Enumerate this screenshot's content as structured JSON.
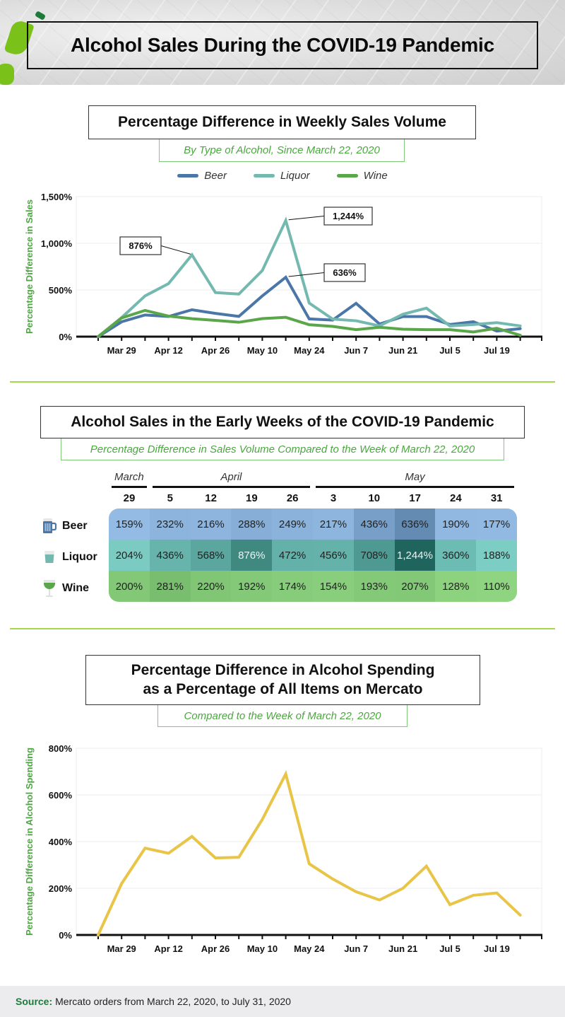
{
  "header": {
    "title": "Alcohol Sales During the COVID-19 Pandemic"
  },
  "section1": {
    "title": "Percentage Difference in Weekly Sales Volume",
    "subtitle": "By Type of Alcohol, Since March 22, 2020"
  },
  "section2": {
    "title": "Alcohol Sales in the Early Weeks of the COVID-19 Pandemic",
    "subtitle": "Percentage Difference in Sales Volume Compared to the Week of March 22, 2020"
  },
  "section3": {
    "title_line1": "Percentage Difference in Alcohol Spending",
    "title_line2": "as a Percentage of All Items on Mercato",
    "subtitle": "Compared to the Week of March 22, 2020"
  },
  "footer": {
    "source_label": "Source:",
    "source_text": "Mercato orders from March 22, 2020, to July 31, 2020"
  },
  "colors": {
    "beer": "#4a77a8",
    "liquor": "#74b9b0",
    "wine": "#5aa64a",
    "spending": "#e8c547",
    "accent_green": "#4aa83e",
    "divider": "#a6d94a"
  },
  "chart_data": [
    {
      "type": "line",
      "title": "Percentage Difference in Weekly Sales Volume",
      "subtitle": "By Type of Alcohol, Since March 22, 2020",
      "xlabel": "",
      "ylabel": "Percentage Difference in Sales",
      "ylim": [
        0,
        1500
      ],
      "yticks": [
        0,
        500,
        1000,
        1500
      ],
      "ytick_labels": [
        "0%",
        "500%",
        "1,000%",
        "1,500%"
      ],
      "x_tick_labels": [
        "Mar 29",
        "Apr 12",
        "Apr 26",
        "May 10",
        "May 24",
        "Jun 7",
        "Jun 21",
        "Jul 5",
        "Jul 19"
      ],
      "x": [
        "Mar 22",
        "Mar 29",
        "Apr 5",
        "Apr 12",
        "Apr 19",
        "Apr 26",
        "May 3",
        "May 10",
        "May 17",
        "May 24",
        "May 31",
        "Jun 7",
        "Jun 14",
        "Jun 21",
        "Jun 28",
        "Jul 5",
        "Jul 12",
        "Jul 19",
        "Jul 26"
      ],
      "grid": true,
      "legend": "top-center",
      "series": [
        {
          "name": "Beer",
          "color": "#4a77a8",
          "values": [
            0,
            159,
            232,
            216,
            288,
            249,
            217,
            436,
            636,
            190,
            177,
            357,
            135,
            215,
            215,
            130,
            160,
            60,
            85
          ]
        },
        {
          "name": "Liquor",
          "color": "#74b9b0",
          "values": [
            0,
            204,
            436,
            568,
            876,
            472,
            456,
            708,
            1244,
            360,
            188,
            170,
            115,
            240,
            305,
            115,
            130,
            150,
            115
          ]
        },
        {
          "name": "Wine",
          "color": "#5aa64a",
          "values": [
            0,
            200,
            281,
            220,
            192,
            174,
            154,
            193,
            207,
            128,
            110,
            75,
            100,
            80,
            75,
            75,
            50,
            90,
            15
          ]
        }
      ],
      "annotations": [
        {
          "text": "876%",
          "series": "Liquor",
          "x": "Apr 19"
        },
        {
          "text": "1,244%",
          "series": "Liquor",
          "x": "May 17"
        },
        {
          "text": "636%",
          "series": "Beer",
          "x": "May 17"
        }
      ]
    },
    {
      "type": "table",
      "title": "Alcohol Sales in the Early Weeks of the COVID-19 Pandemic",
      "subtitle": "Percentage Difference in Sales Volume Compared to the Week of March 22, 2020",
      "month_groups": [
        {
          "label": "March",
          "span": 1
        },
        {
          "label": "April",
          "span": 4
        },
        {
          "label": "May",
          "span": 5
        }
      ],
      "columns": [
        "29",
        "5",
        "12",
        "19",
        "26",
        "3",
        "10",
        "17",
        "24",
        "31"
      ],
      "rows": [
        {
          "label": "Beer",
          "icon": "beer-mug-icon",
          "values": [
            "159%",
            "232%",
            "216%",
            "288%",
            "249%",
            "217%",
            "436%",
            "636%",
            "190%",
            "177%"
          ]
        },
        {
          "label": "Liquor",
          "icon": "liquor-glass-icon",
          "values": [
            "204%",
            "436%",
            "568%",
            "876%",
            "472%",
            "456%",
            "708%",
            "1,244%",
            "360%",
            "188%"
          ]
        },
        {
          "label": "Wine",
          "icon": "wine-glass-icon",
          "values": [
            "200%",
            "281%",
            "220%",
            "192%",
            "174%",
            "154%",
            "193%",
            "207%",
            "128%",
            "110%"
          ]
        }
      ]
    },
    {
      "type": "line",
      "title": "Percentage Difference in Alcohol Spending as a Percentage of All Items on Mercato",
      "subtitle": "Compared to the Week of March 22, 2020",
      "xlabel": "",
      "ylabel": "Percentage Difference in Alcohol Spending",
      "ylim": [
        0,
        800
      ],
      "yticks": [
        0,
        200,
        400,
        600,
        800
      ],
      "ytick_labels": [
        "0%",
        "200%",
        "400%",
        "600%",
        "800%"
      ],
      "x_tick_labels": [
        "Mar 29",
        "Apr 12",
        "Apr 26",
        "May 10",
        "May 24",
        "Jun 7",
        "Jun 21",
        "Jul 5",
        "Jul 19"
      ],
      "x": [
        "Mar 22",
        "Mar 29",
        "Apr 5",
        "Apr 12",
        "Apr 19",
        "Apr 26",
        "May 3",
        "May 10",
        "May 17",
        "May 24",
        "May 31",
        "Jun 7",
        "Jun 14",
        "Jun 21",
        "Jun 28",
        "Jul 5",
        "Jul 12",
        "Jul 19",
        "Jul 26"
      ],
      "grid": true,
      "series": [
        {
          "name": "Alcohol Spending",
          "color": "#e8c547",
          "values": [
            0,
            220,
            372,
            350,
            422,
            330,
            333,
            495,
            690,
            305,
            240,
            185,
            150,
            200,
            295,
            130,
            170,
            180,
            85
          ]
        }
      ]
    }
  ]
}
